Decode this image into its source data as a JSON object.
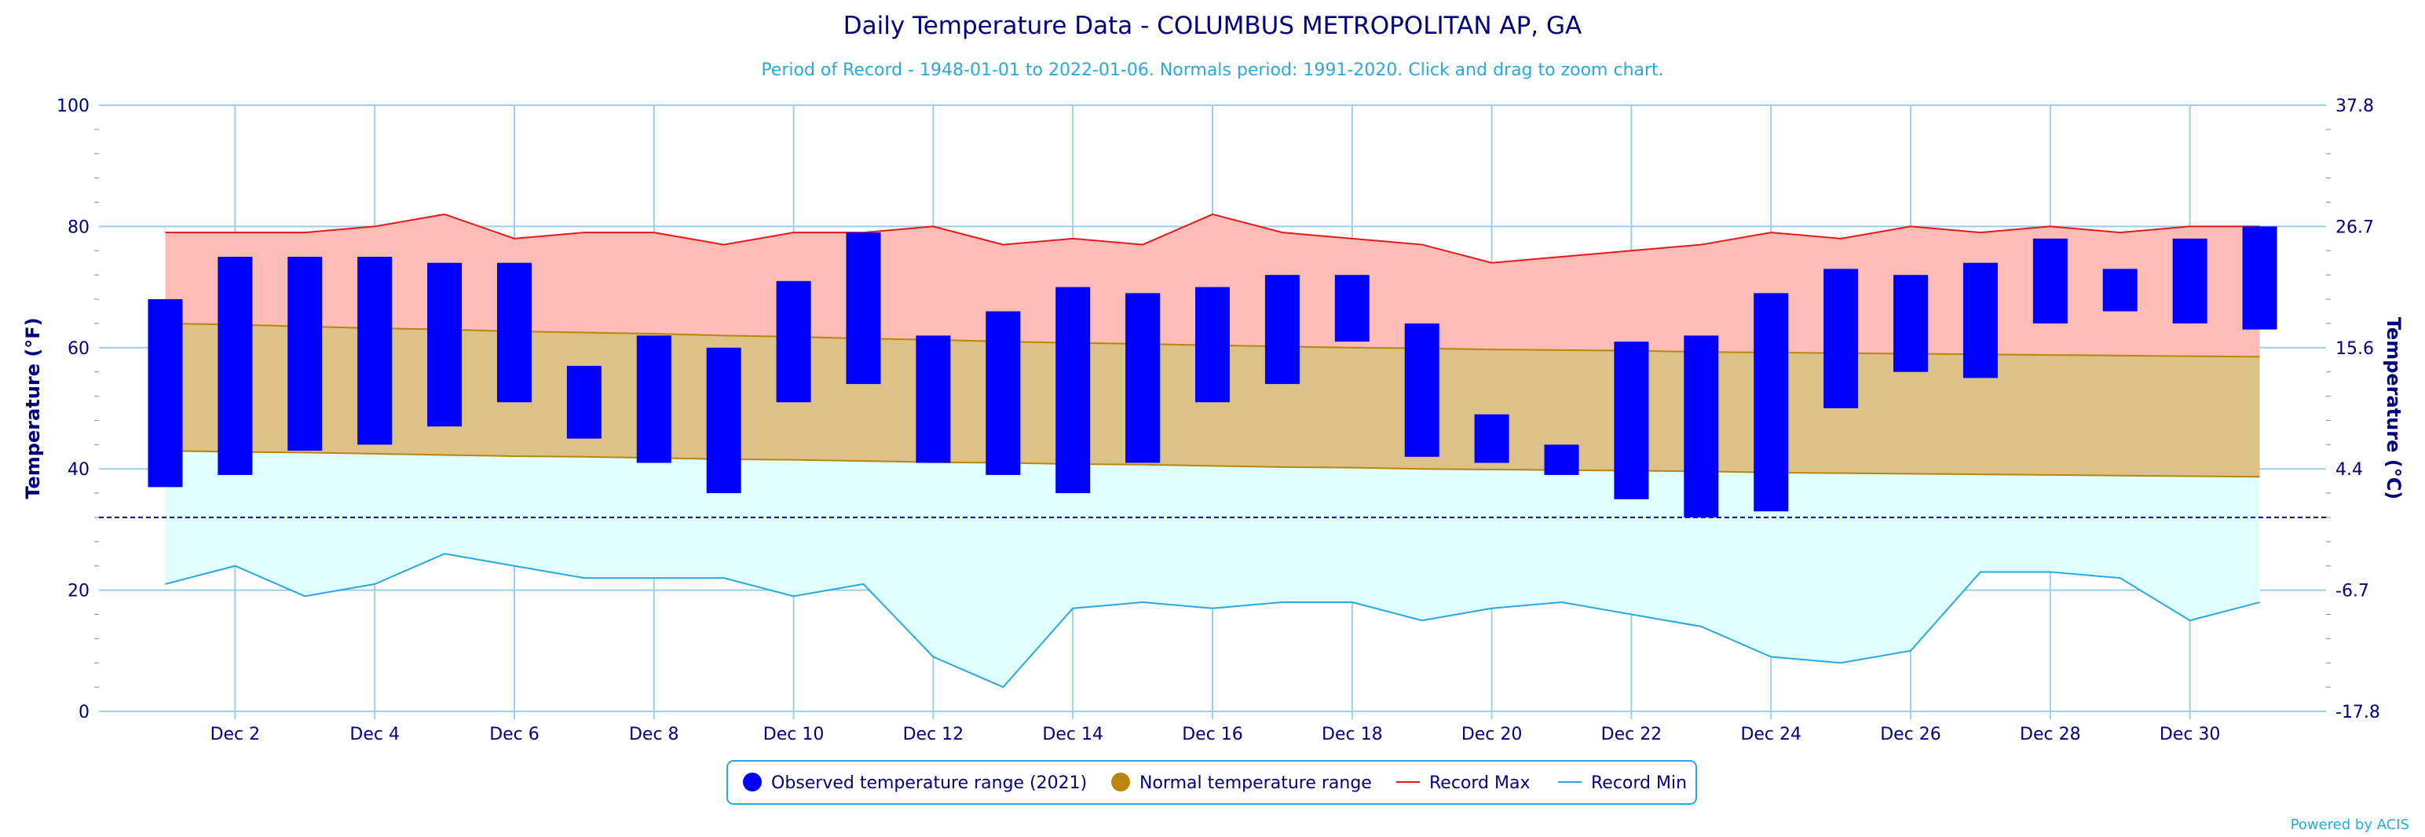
{
  "title": "Daily Temperature Data - COLUMBUS METROPOLITAN AP, GA",
  "subtitle": "Period of Record - 1948-01-01 to 2022-01-06. Normals period: 1991-2020. Click and drag to zoom chart.",
  "credit": "Powered by ACIS",
  "colors": {
    "observed": "#0000ff",
    "normal": "#b8860b",
    "normal_fill": "#dcc188",
    "record_max": "#e31a1c",
    "record_max_fill": "#fdbcb6",
    "record_min": "#29a8e0",
    "record_min_fill": "#e0ffff",
    "freeze_line": "#0000b0",
    "text": "#00007f",
    "subtitle": "#29a8e0"
  },
  "chart_data": {
    "type": "bar",
    "title": "Daily Temperature Data - COLUMBUS METROPOLITAN AP, GA",
    "ylabel": "Temperature (°F)",
    "ylabel_right": "Temperature (°C)",
    "ylim": [
      0,
      100
    ],
    "y_ticks": [
      "0",
      "20",
      "40",
      "60",
      "80",
      "100"
    ],
    "y_ticks_right": [
      "-17.8",
      "-6.7",
      "4.4",
      "15.6",
      "26.7",
      "37.8"
    ],
    "x_tick_labels": [
      "Dec 2",
      "Dec 4",
      "Dec 6",
      "Dec 8",
      "Dec 10",
      "Dec 12",
      "Dec 14",
      "Dec 16",
      "Dec 18",
      "Dec 20",
      "Dec 22",
      "Dec 24",
      "Dec 26",
      "Dec 28",
      "Dec 30"
    ],
    "x_tick_days": [
      2,
      4,
      6,
      8,
      10,
      12,
      14,
      16,
      18,
      20,
      22,
      24,
      26,
      28,
      30
    ],
    "days": [
      1,
      2,
      3,
      4,
      5,
      6,
      7,
      8,
      9,
      10,
      11,
      12,
      13,
      14,
      15,
      16,
      17,
      18,
      19,
      20,
      21,
      22,
      23,
      24,
      25,
      26,
      27,
      28,
      29,
      30,
      31
    ],
    "freezing_line": 32,
    "grid": true,
    "legend_position": "bottom",
    "series": [
      {
        "name": "Observed temperature range (2021)",
        "type": "columnrange",
        "high": [
          68,
          75,
          75,
          75,
          74,
          74,
          57,
          62,
          60,
          71,
          79,
          62,
          66,
          70,
          69,
          70,
          72,
          72,
          64,
          49,
          44,
          61,
          62,
          69,
          73,
          72,
          74,
          78,
          73,
          78,
          80
        ],
        "low": [
          37,
          39,
          43,
          44,
          47,
          51,
          45,
          41,
          36,
          51,
          54,
          41,
          39,
          36,
          41,
          51,
          54,
          61,
          42,
          41,
          39,
          35,
          32,
          33,
          50,
          56,
          55,
          64,
          66,
          64,
          63
        ]
      },
      {
        "name": "Normal temperature range",
        "type": "arearange",
        "high": [
          64,
          63.8,
          63.5,
          63.2,
          63,
          62.7,
          62.5,
          62.3,
          62,
          61.8,
          61.5,
          61.3,
          61,
          60.8,
          60.6,
          60.4,
          60.2,
          60,
          59.9,
          59.7,
          59.6,
          59.5,
          59.3,
          59.2,
          59.1,
          59,
          58.9,
          58.8,
          58.7,
          58.6,
          58.5
        ],
        "low": [
          43,
          42.8,
          42.7,
          42.5,
          42.3,
          42.1,
          42,
          41.8,
          41.6,
          41.5,
          41.3,
          41.1,
          41,
          40.8,
          40.7,
          40.5,
          40.3,
          40.2,
          40,
          39.9,
          39.8,
          39.7,
          39.6,
          39.4,
          39.3,
          39.2,
          39.1,
          39,
          38.9,
          38.8,
          38.7
        ]
      },
      {
        "name": "Record Max",
        "type": "line",
        "values": [
          79,
          79,
          79,
          80,
          82,
          78,
          79,
          79,
          77,
          79,
          79,
          80,
          77,
          78,
          77,
          82,
          79,
          78,
          77,
          74,
          75,
          76,
          77,
          79,
          78,
          80,
          79,
          80,
          79,
          80,
          80
        ]
      },
      {
        "name": "Record Min",
        "type": "line",
        "values": [
          21,
          24,
          19,
          21,
          26,
          24,
          22,
          22,
          22,
          19,
          21,
          9,
          4,
          17,
          18,
          17,
          18,
          18,
          15,
          17,
          18,
          16,
          14,
          9,
          8,
          10,
          23,
          23,
          22,
          15,
          18
        ]
      }
    ]
  }
}
